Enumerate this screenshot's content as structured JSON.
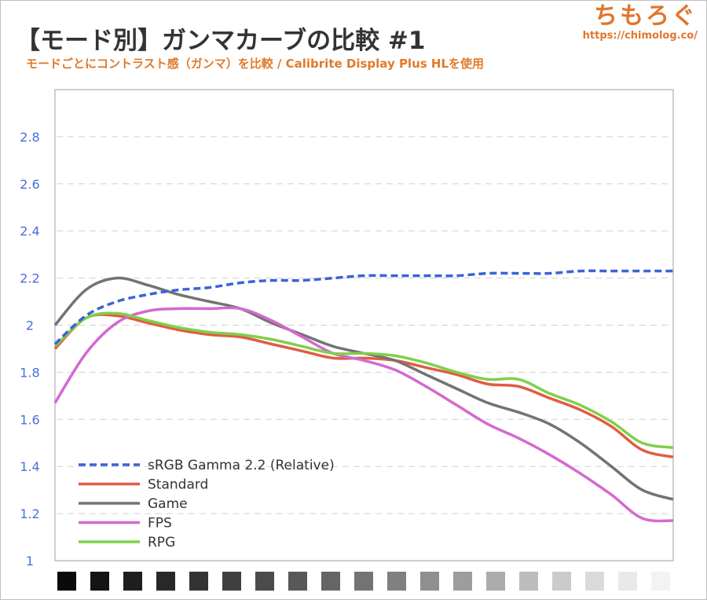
{
  "header": {
    "title": "【モード別】ガンマカーブの比較 #1",
    "subtitle": "モードごとにコントラスト感（ガンマ）を比較 / Calibrite Display Plus HLを使用",
    "brand_name": "ちもろぐ",
    "brand_url": "https://chimolog.co/"
  },
  "colors": {
    "axis_tick_text": "#4a6fdc",
    "grid": "#d0d0d0",
    "plot_border": "#bfbfbf",
    "brand": "#e0762c"
  },
  "chart_data": {
    "type": "line",
    "title": "",
    "xlabel": "",
    "ylabel": "",
    "ylim": [
      1,
      3
    ],
    "yticks": [
      "1",
      "1.2",
      "1.4",
      "1.6",
      "1.8",
      "2",
      "2.2",
      "2.4",
      "2.6",
      "2.8"
    ],
    "grid": "horizontal dashed",
    "legend_position": "bottom-left",
    "x": [
      0,
      1,
      2,
      3,
      4,
      5,
      6,
      7,
      8,
      9,
      10,
      11,
      12,
      13,
      14,
      15,
      16,
      17,
      18,
      19,
      20
    ],
    "x_axis_note": "grayscale steps shown as swatches from black to white",
    "gray_swatches": [
      "#0a0a0a",
      "#141414",
      "#1e1e1e",
      "#282828",
      "#333333",
      "#3f3f3f",
      "#4b4b4b",
      "#585858",
      "#656565",
      "#737373",
      "#808080",
      "#8f8f8f",
      "#9d9d9d",
      "#acacac",
      "#bcbcbc",
      "#cbcbcb",
      "#dadada",
      "#e9e9e9",
      "#f3f3f3"
    ],
    "series": [
      {
        "name": "sRGB Gamma 2.2 (Relative)",
        "color": "#3b63d9",
        "dashed": true,
        "values": [
          1.92,
          2.04,
          2.1,
          2.13,
          2.15,
          2.16,
          2.18,
          2.19,
          2.19,
          2.2,
          2.21,
          2.21,
          2.21,
          2.21,
          2.22,
          2.22,
          2.22,
          2.23,
          2.23,
          2.23,
          2.23
        ]
      },
      {
        "name": "Standard",
        "color": "#e05c44",
        "dashed": false,
        "values": [
          1.9,
          2.03,
          2.04,
          2.01,
          1.98,
          1.96,
          1.95,
          1.92,
          1.89,
          1.86,
          1.86,
          1.85,
          1.82,
          1.79,
          1.75,
          1.74,
          1.69,
          1.64,
          1.57,
          1.47,
          1.44
        ]
      },
      {
        "name": "Game",
        "color": "#737373",
        "dashed": false,
        "values": [
          2.0,
          2.15,
          2.2,
          2.17,
          2.13,
          2.1,
          2.07,
          2.01,
          1.96,
          1.91,
          1.88,
          1.85,
          1.79,
          1.73,
          1.67,
          1.63,
          1.58,
          1.5,
          1.4,
          1.3,
          1.26
        ]
      },
      {
        "name": "FPS",
        "color": "#d26ad0",
        "dashed": false,
        "values": [
          1.67,
          1.88,
          2.01,
          2.06,
          2.07,
          2.07,
          2.07,
          2.02,
          1.95,
          1.88,
          1.85,
          1.81,
          1.74,
          1.66,
          1.58,
          1.52,
          1.45,
          1.37,
          1.28,
          1.18,
          1.17
        ]
      },
      {
        "name": "RPG",
        "color": "#7fd04a",
        "dashed": false,
        "values": [
          1.91,
          2.03,
          2.05,
          2.02,
          1.99,
          1.97,
          1.96,
          1.94,
          1.91,
          1.88,
          1.88,
          1.87,
          1.84,
          1.8,
          1.77,
          1.77,
          1.71,
          1.66,
          1.59,
          1.5,
          1.48
        ]
      }
    ]
  }
}
